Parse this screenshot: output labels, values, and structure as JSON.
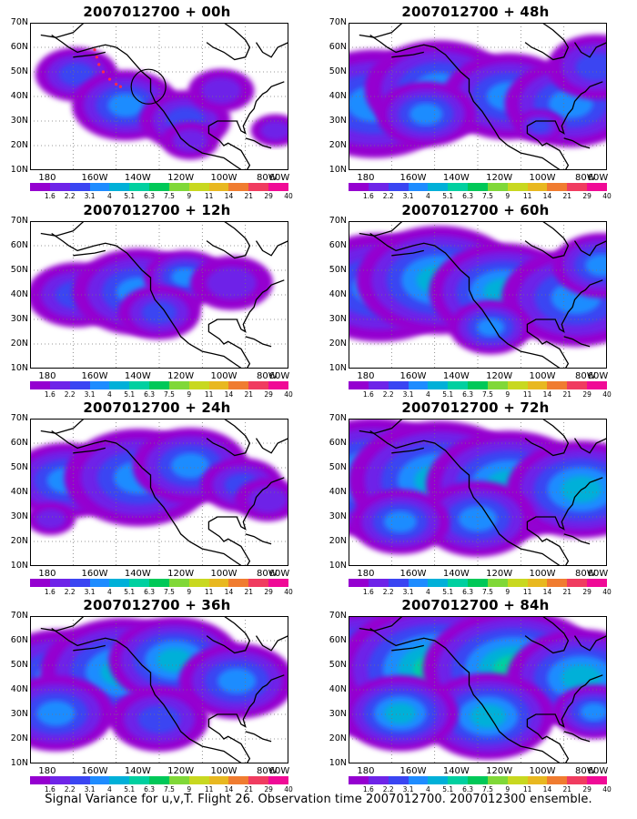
{
  "caption": "Signal Variance for u,v,T. Flight 26. Observation time 2007012700. 2007012300 ensemble.",
  "panels": [
    {
      "title": "2007012700 + 00h",
      "blobs": [
        [
          18,
          35,
          10,
          0.7
        ],
        [
          37,
          56,
          13,
          0.9
        ],
        [
          60,
          66,
          11,
          0.85
        ],
        [
          95,
          73,
          6,
          0.5
        ],
        [
          74,
          46,
          8,
          0.5
        ],
        [
          62,
          80,
          7,
          0.6
        ]
      ]
    },
    {
      "title": "2007012700 + 48h",
      "blobs": [
        [
          10,
          55,
          20,
          0.95
        ],
        [
          35,
          45,
          18,
          1.05
        ],
        [
          62,
          50,
          16,
          1.0
        ],
        [
          86,
          55,
          16,
          1.0
        ],
        [
          96,
          30,
          12,
          0.7
        ],
        [
          74,
          70,
          6,
          0.7
        ],
        [
          30,
          62,
          12,
          0.9
        ]
      ]
    },
    {
      "title": "2007012700 + 12h",
      "blobs": [
        [
          18,
          50,
          12,
          0.8
        ],
        [
          42,
          48,
          16,
          1.0
        ],
        [
          60,
          38,
          10,
          0.9
        ],
        [
          78,
          42,
          10,
          0.6
        ],
        [
          50,
          62,
          10,
          0.7
        ]
      ]
    },
    {
      "title": "2007012700 + 60h",
      "blobs": [
        [
          12,
          45,
          20,
          1.1
        ],
        [
          35,
          40,
          20,
          1.2
        ],
        [
          60,
          48,
          18,
          1.2
        ],
        [
          88,
          52,
          18,
          1.1
        ],
        [
          98,
          30,
          12,
          0.9
        ],
        [
          55,
          72,
          10,
          0.9
        ]
      ]
    },
    {
      "title": "2007012700 + 24h",
      "blobs": [
        [
          14,
          42,
          14,
          0.9
        ],
        [
          42,
          40,
          18,
          1.0
        ],
        [
          62,
          32,
          14,
          1.1
        ],
        [
          82,
          45,
          10,
          0.7
        ],
        [
          92,
          55,
          8,
          0.5
        ],
        [
          8,
          68,
          6,
          0.6
        ]
      ]
    },
    {
      "title": "2007012700 + 72h",
      "blobs": [
        [
          10,
          40,
          22,
          1.3
        ],
        [
          35,
          42,
          22,
          1.3
        ],
        [
          62,
          45,
          20,
          1.3
        ],
        [
          90,
          48,
          18,
          1.2
        ],
        [
          50,
          68,
          14,
          1.0
        ],
        [
          20,
          70,
          12,
          1.0
        ]
      ]
    },
    {
      "title": "2007012700 + 36h",
      "blobs": [
        [
          12,
          42,
          18,
          1.1
        ],
        [
          36,
          38,
          20,
          1.2
        ],
        [
          56,
          30,
          16,
          1.3
        ],
        [
          80,
          44,
          14,
          1.0
        ],
        [
          10,
          66,
          14,
          0.9
        ],
        [
          50,
          70,
          12,
          0.8
        ]
      ]
    },
    {
      "title": "2007012700 + 84h",
      "blobs": [
        [
          10,
          38,
          24,
          1.4
        ],
        [
          34,
          36,
          24,
          1.5
        ],
        [
          64,
          36,
          22,
          1.55
        ],
        [
          90,
          42,
          18,
          1.3
        ],
        [
          54,
          68,
          16,
          1.2
        ],
        [
          20,
          66,
          14,
          1.2
        ],
        [
          95,
          65,
          10,
          0.9
        ]
      ]
    }
  ],
  "y_ticks": [
    "70N",
    "60N",
    "50N",
    "40N",
    "30N",
    "20N",
    "10N"
  ],
  "x_ticks": [
    "180",
    "160W",
    "140W",
    "120W",
    "100W",
    "80W",
    "60W"
  ],
  "colorbar": {
    "labels": [
      "1.6",
      "2.2",
      "3.1",
      "4",
      "5.1",
      "6.3",
      "7.5",
      "9",
      "11",
      "14",
      "21",
      "29",
      "40"
    ],
    "colors": [
      "#ffffff",
      "#9500d0",
      "#6e24e8",
      "#3a45f2",
      "#1e8cff",
      "#00b0d8",
      "#00d0a0",
      "#00c858",
      "#80d838",
      "#c8d820",
      "#e8b820",
      "#f07c30",
      "#f03c60",
      "#f00a96"
    ]
  }
}
